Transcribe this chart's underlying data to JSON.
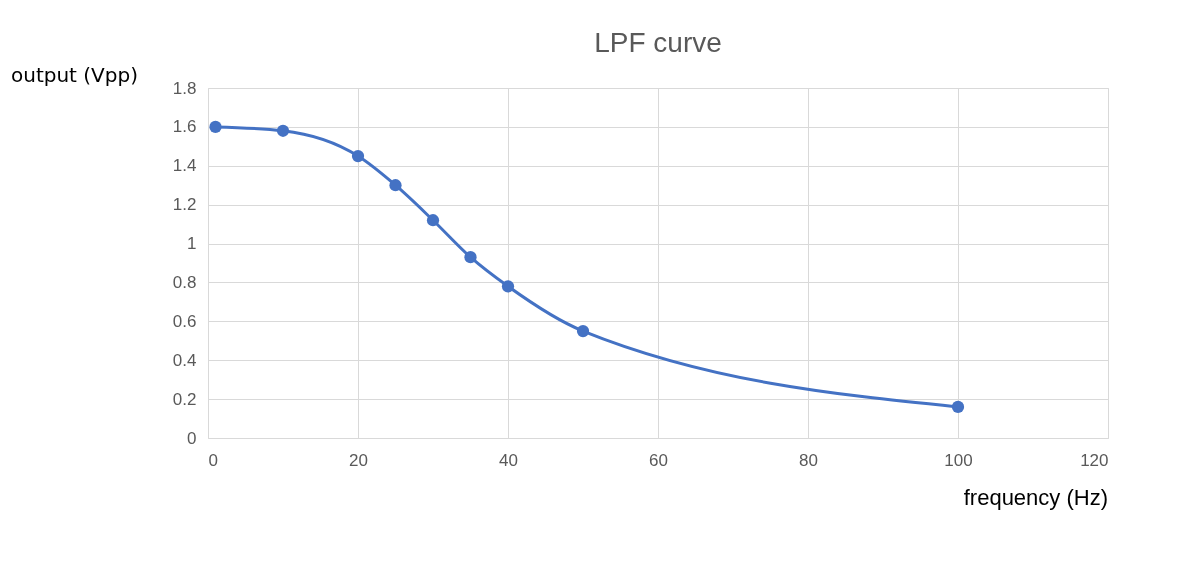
{
  "chart_data": {
    "type": "line",
    "title": "LPF curve",
    "xlabel": "frequency (Hz)",
    "ylabel": "output (Vpp)",
    "x": [
      1,
      10,
      20,
      25,
      30,
      35,
      40,
      50,
      100
    ],
    "series": [
      {
        "color": "#4472c4",
        "values": [
          1.6,
          1.58,
          1.45,
          1.3,
          1.12,
          0.93,
          0.78,
          0.55,
          0.16
        ]
      }
    ],
    "xlim": [
      0,
      120
    ],
    "xticks": [
      0,
      20,
      40,
      60,
      80,
      100,
      120
    ],
    "ylim": [
      0,
      1.8
    ],
    "yticks": [
      0,
      0.2,
      0.4,
      0.6,
      0.8,
      1,
      1.2,
      1.4,
      1.6,
      1.8
    ],
    "grid": true,
    "marker": "circle",
    "line_style": "solid"
  }
}
